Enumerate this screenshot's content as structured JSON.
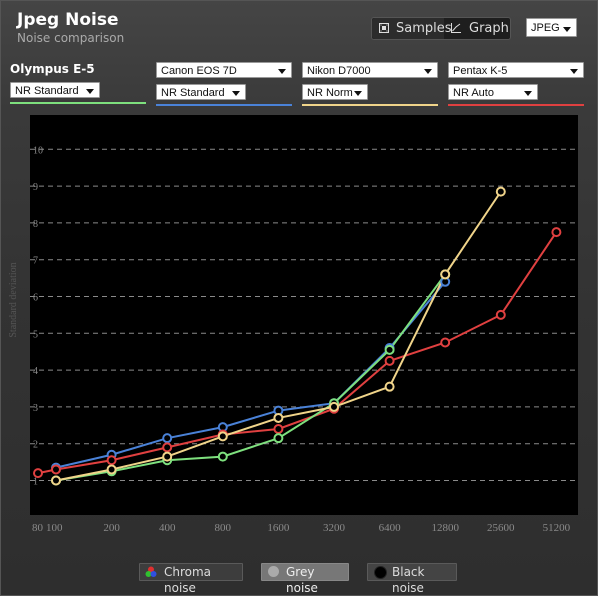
{
  "header": {
    "title": "Jpeg Noise",
    "subtitle": "Noise comparison"
  },
  "view": {
    "samples_label": "Samples",
    "graph_label": "Graph",
    "format_selected": "JPEG"
  },
  "cameras": [
    {
      "name": "Olympus E-5",
      "nr": "NR Standard",
      "color": "#7ee07e"
    },
    {
      "name": "Canon EOS 7D",
      "nr": "NR Standard",
      "color": "#4a82d8"
    },
    {
      "name": "Nikon D7000",
      "nr": "NR Norm",
      "color": "#f0d48a"
    },
    {
      "name": "Pentax K-5",
      "nr": "NR Auto",
      "color": "#e04040"
    }
  ],
  "chart_data": {
    "type": "line",
    "ylabel": "Standard deviation",
    "ylim": [
      0,
      11
    ],
    "yticks": [
      "1",
      "2",
      "3",
      "4",
      "5",
      "6",
      "7",
      "8",
      "9",
      "10"
    ],
    "categories": [
      "80",
      "100",
      "200",
      "400",
      "800",
      "1600",
      "3200",
      "6400",
      "12800",
      "25600",
      "51200"
    ],
    "grid": true,
    "series": [
      {
        "name": "Canon EOS 7D",
        "color": "#4a82d8",
        "points": [
          [
            1,
            1.35
          ],
          [
            2,
            1.7
          ],
          [
            3,
            2.15
          ],
          [
            4,
            2.45
          ],
          [
            5,
            2.9
          ],
          [
            6,
            3.1
          ],
          [
            7,
            4.6
          ],
          [
            8,
            6.4
          ]
        ]
      },
      {
        "name": "Pentax K-5",
        "color": "#e04040",
        "points": [
          [
            0,
            1.2
          ],
          [
            1,
            1.3
          ],
          [
            2,
            1.55
          ],
          [
            3,
            1.9
          ],
          [
            4,
            2.25
          ],
          [
            5,
            2.4
          ],
          [
            6,
            2.95
          ],
          [
            7,
            4.25
          ],
          [
            8,
            4.75
          ],
          [
            9,
            5.5
          ],
          [
            10,
            7.75
          ]
        ]
      },
      {
        "name": "Olympus E-5",
        "color": "#7ee07e",
        "points": [
          [
            1,
            1.0
          ],
          [
            2,
            1.25
          ],
          [
            3,
            1.55
          ],
          [
            4,
            1.65
          ],
          [
            5,
            2.15
          ],
          [
            6,
            3.1
          ],
          [
            7,
            4.55
          ],
          [
            8,
            6.6
          ]
        ]
      },
      {
        "name": "Nikon D7000",
        "color": "#f0d48a",
        "points": [
          [
            1,
            1.0
          ],
          [
            2,
            1.3
          ],
          [
            3,
            1.65
          ],
          [
            4,
            2.2
          ],
          [
            5,
            2.7
          ],
          [
            6,
            3.0
          ],
          [
            7,
            3.55
          ],
          [
            8,
            6.6
          ],
          [
            9,
            8.85
          ]
        ]
      }
    ]
  },
  "legend": {
    "chroma": "Chroma noise",
    "grey": "Grey noise",
    "black": "Black noise"
  }
}
